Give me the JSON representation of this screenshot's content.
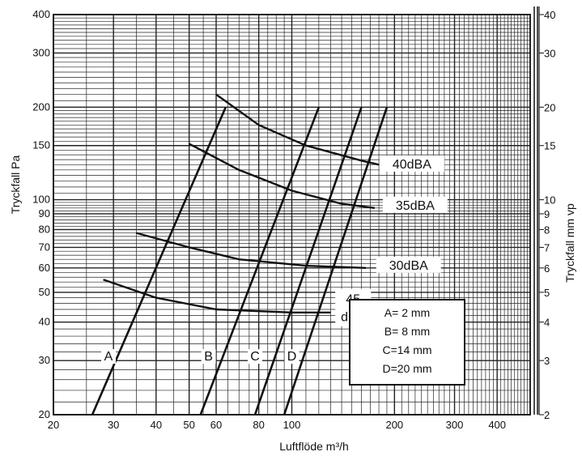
{
  "chart_data": {
    "type": "line",
    "xlabel": "Luftflöde m³/h",
    "ylabel": "Tryckfall Pa",
    "ylabel_right": "Tryckfall mm vp",
    "x_scale": "log",
    "y_scale": "log",
    "xlim": [
      20,
      500
    ],
    "ylim": [
      20,
      400
    ],
    "x_ticks": [
      20,
      30,
      40,
      50,
      60,
      80,
      100,
      200,
      300,
      400
    ],
    "y_ticks": [
      20,
      30,
      40,
      50,
      60,
      70,
      80,
      90,
      100,
      150,
      200,
      300,
      400
    ],
    "y_right_ticks": [
      {
        "label": "2",
        "pa": 20
      },
      {
        "label": "3",
        "pa": 30
      },
      {
        "label": "4",
        "pa": 40
      },
      {
        "label": "5",
        "pa": 50
      },
      {
        "label": "6",
        "pa": 60
      },
      {
        "label": "7",
        "pa": 70
      },
      {
        "label": "8",
        "pa": 80
      },
      {
        "label": "9",
        "pa": 90
      },
      {
        "label": "10",
        "pa": 100
      },
      {
        "label": "15",
        "pa": 150
      },
      {
        "label": "20",
        "pa": 200
      },
      {
        "label": "30",
        "pa": 300
      },
      {
        "label": "40",
        "pa": 400
      }
    ],
    "grid": true,
    "series": [
      {
        "name": "A",
        "points": [
          [
            26,
            20
          ],
          [
            64,
            200
          ]
        ],
        "label_at": [
          29,
          30
        ]
      },
      {
        "name": "B",
        "points": [
          [
            54,
            20
          ],
          [
            120,
            200
          ]
        ],
        "label_at": [
          57,
          30
        ]
      },
      {
        "name": "C",
        "points": [
          [
            78,
            20
          ],
          [
            160,
            200
          ]
        ],
        "label_at": [
          78,
          30
        ]
      },
      {
        "name": "D",
        "points": [
          [
            95,
            20
          ],
          [
            190,
            200
          ]
        ],
        "label_at": [
          100,
          30
        ]
      }
    ],
    "noise_curves": [
      {
        "label": "40dBA",
        "points": [
          [
            60,
            220
          ],
          [
            80,
            175
          ],
          [
            110,
            150
          ],
          [
            160,
            134
          ],
          [
            180,
            130
          ]
        ],
        "label_at": [
          225,
          128
        ]
      },
      {
        "label": "35dBA",
        "points": [
          [
            50,
            152
          ],
          [
            70,
            125
          ],
          [
            100,
            107
          ],
          [
            140,
            97
          ],
          [
            175,
            94
          ]
        ],
        "label_at": [
          230,
          94
        ]
      },
      {
        "label": "30dBA",
        "points": [
          [
            35,
            78
          ],
          [
            50,
            70
          ],
          [
            70,
            64
          ],
          [
            110,
            61
          ],
          [
            165,
            60
          ]
        ],
        "label_at": [
          220,
          60
        ]
      },
      {
        "label": "45",
        "label2": "dBA",
        "points": [
          [
            28,
            55
          ],
          [
            40,
            48
          ],
          [
            60,
            44
          ],
          [
            100,
            43
          ],
          [
            130,
            43
          ]
        ],
        "label_at": [
          158,
          46
        ]
      }
    ],
    "legend": {
      "position": "bottom-right",
      "entries": [
        "A= 2 mm",
        "B= 8 mm",
        "C=14 mm",
        "D=20 mm"
      ]
    }
  }
}
